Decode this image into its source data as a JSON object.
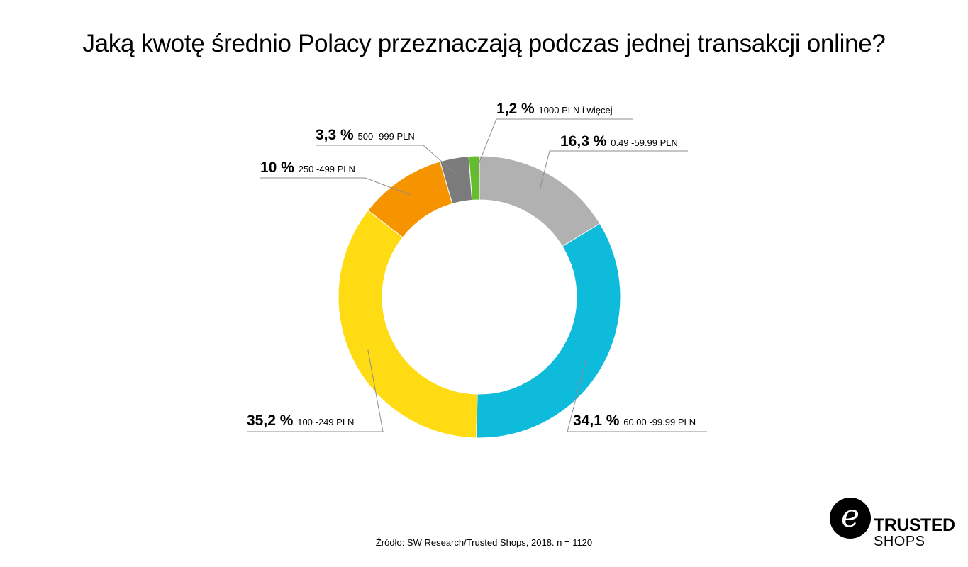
{
  "title": "Jaką kwotę średnio Polacy przeznaczają podczas jednej transakcji online?",
  "source": "Źródło: SW Research/Trusted Shops, 2018. n = 1120",
  "logo": {
    "icon": "trusted-shops-e-icon",
    "line1": "TRUSTED",
    "line2": "SHOPS",
    "badge_glyph": "e"
  },
  "chart_data": {
    "type": "pie",
    "donut": true,
    "title": "Jaką kwotę średnio Polacy przeznaczają podczas jednej transakcji online?",
    "slices": [
      {
        "label": "0.49 -59.99 PLN",
        "value": 16.3,
        "display": "16,3 %",
        "color": "#b1b1b1"
      },
      {
        "label": "60.00 -99.99 PLN",
        "value": 34.1,
        "display": "34,1 %",
        "color": "#0fbbdb"
      },
      {
        "label": "100 -249 PLN",
        "value": 35.2,
        "display": "35,2 %",
        "color": "#fedb12"
      },
      {
        "label": "250 -499 PLN",
        "value": 10,
        "display": "10 %",
        "color": "#f69400"
      },
      {
        "label": "500 -999 PLN",
        "value": 3.3,
        "display": "3,3 %",
        "color": "#7b7b7b"
      },
      {
        "label": "1000 PLN i więcej",
        "value": 1.2,
        "display": "1,2 %",
        "color": "#64bd2a"
      }
    ]
  }
}
